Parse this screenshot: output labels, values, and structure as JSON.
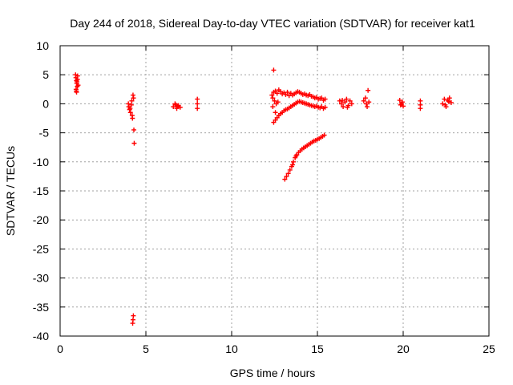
{
  "chart_data": {
    "type": "scatter",
    "title": "Day 244 of 2018, Sidereal Day-to-day VTEC variation (SDTVAR) for receiver kat1",
    "xlabel": "GPS time / hours",
    "ylabel": "SDTVAR / TECUs",
    "xlim": [
      0,
      25
    ],
    "ylim": [
      -40,
      10
    ],
    "xticks": [
      0,
      5,
      10,
      15,
      20,
      25
    ],
    "yticks": [
      10,
      5,
      0,
      -5,
      -10,
      -15,
      -20,
      -25,
      -30,
      -35,
      -40
    ],
    "grid": true,
    "marker": "+",
    "series": [
      {
        "name": "kat1",
        "color": "#ff0000",
        "points": [
          [
            0.9,
            5.0
          ],
          [
            0.92,
            4.5
          ],
          [
            0.95,
            4.0
          ],
          [
            0.97,
            3.5
          ],
          [
            1.0,
            3.0
          ],
          [
            0.93,
            2.5
          ],
          [
            0.96,
            2.0
          ],
          [
            1.02,
            4.8
          ],
          [
            0.98,
            3.8
          ],
          [
            1.05,
            3.2
          ],
          [
            0.94,
            2.2
          ],
          [
            1.01,
            4.2
          ],
          [
            4.0,
            -0.5
          ],
          [
            4.05,
            -1.0
          ],
          [
            4.1,
            -1.5
          ],
          [
            4.15,
            -0.2
          ],
          [
            4.2,
            -2.0
          ],
          [
            4.25,
            1.5
          ],
          [
            4.28,
            1.0
          ],
          [
            4.18,
            0.5
          ],
          [
            4.22,
            -2.5
          ],
          [
            4.3,
            -4.5
          ],
          [
            4.32,
            -6.8
          ],
          [
            4.27,
            -36.5
          ],
          [
            4.25,
            -37.2
          ],
          [
            4.23,
            -37.8
          ],
          [
            3.98,
            0.0
          ],
          [
            4.08,
            -0.8
          ],
          [
            6.6,
            -0.5
          ],
          [
            6.7,
            0.0
          ],
          [
            6.8,
            -0.8
          ],
          [
            6.9,
            -0.3
          ],
          [
            7.0,
            -0.6
          ],
          [
            6.75,
            -0.2
          ],
          [
            6.85,
            -0.4
          ],
          [
            8.0,
            0.8
          ],
          [
            8.0,
            0.0
          ],
          [
            8.0,
            -0.8
          ],
          [
            12.45,
            5.8
          ],
          [
            12.35,
            1.5
          ],
          [
            12.45,
            2.0
          ],
          [
            12.55,
            2.2
          ],
          [
            12.65,
            1.8
          ],
          [
            12.75,
            2.4
          ],
          [
            12.85,
            2.1
          ],
          [
            12.95,
            1.7
          ],
          [
            13.05,
            1.9
          ],
          [
            13.15,
            1.6
          ],
          [
            13.25,
            2.0
          ],
          [
            13.35,
            1.4
          ],
          [
            13.45,
            1.8
          ],
          [
            13.55,
            1.5
          ],
          [
            13.65,
            1.7
          ],
          [
            13.75,
            1.9
          ],
          [
            13.85,
            2.1
          ],
          [
            13.95,
            2.0
          ],
          [
            14.05,
            1.8
          ],
          [
            14.15,
            1.6
          ],
          [
            14.25,
            1.7
          ],
          [
            14.35,
            1.5
          ],
          [
            14.45,
            1.4
          ],
          [
            14.55,
            1.6
          ],
          [
            14.65,
            1.3
          ],
          [
            14.75,
            1.2
          ],
          [
            14.85,
            1.0
          ],
          [
            14.95,
            1.1
          ],
          [
            15.05,
            0.8
          ],
          [
            15.15,
            0.9
          ],
          [
            15.25,
            1.0
          ],
          [
            15.35,
            0.6
          ],
          [
            15.45,
            0.8
          ],
          [
            12.45,
            -3.2
          ],
          [
            12.55,
            -2.8
          ],
          [
            12.65,
            -2.4
          ],
          [
            12.75,
            -2.0
          ],
          [
            12.85,
            -1.7
          ],
          [
            12.95,
            -1.5
          ],
          [
            13.05,
            -1.2
          ],
          [
            13.15,
            -1.0
          ],
          [
            13.25,
            -0.9
          ],
          [
            13.35,
            -0.7
          ],
          [
            13.45,
            -0.5
          ],
          [
            13.55,
            -0.3
          ],
          [
            13.65,
            -0.1
          ],
          [
            13.75,
            0.1
          ],
          [
            13.85,
            0.3
          ],
          [
            13.95,
            0.4
          ],
          [
            14.05,
            0.3
          ],
          [
            14.15,
            0.2
          ],
          [
            14.25,
            0.1
          ],
          [
            14.35,
            0.0
          ],
          [
            14.45,
            -0.1
          ],
          [
            14.55,
            -0.2
          ],
          [
            14.65,
            -0.3
          ],
          [
            14.75,
            -0.4
          ],
          [
            14.85,
            -0.5
          ],
          [
            14.95,
            -0.4
          ],
          [
            15.05,
            -0.6
          ],
          [
            15.15,
            -0.7
          ],
          [
            15.25,
            -0.5
          ],
          [
            15.35,
            -0.8
          ],
          [
            15.45,
            -0.6
          ],
          [
            12.4,
            -0.5
          ],
          [
            12.5,
            0.5
          ],
          [
            12.6,
            0.0
          ],
          [
            12.4,
            1.0
          ],
          [
            12.7,
            0.3
          ],
          [
            12.55,
            -1.5
          ],
          [
            13.1,
            -13.0
          ],
          [
            13.2,
            -12.5
          ],
          [
            13.3,
            -12.0
          ],
          [
            13.4,
            -11.4
          ],
          [
            13.5,
            -10.8
          ],
          [
            13.6,
            -10.0
          ],
          [
            13.7,
            -9.3
          ],
          [
            13.8,
            -8.8
          ],
          [
            13.9,
            -8.4
          ],
          [
            14.0,
            -8.1
          ],
          [
            14.1,
            -7.8
          ],
          [
            14.2,
            -7.6
          ],
          [
            14.3,
            -7.4
          ],
          [
            14.4,
            -7.2
          ],
          [
            14.5,
            -7.0
          ],
          [
            14.6,
            -6.8
          ],
          [
            14.7,
            -6.6
          ],
          [
            14.8,
            -6.4
          ],
          [
            14.9,
            -6.3
          ],
          [
            15.0,
            -6.1
          ],
          [
            15.1,
            -6.0
          ],
          [
            15.2,
            -5.8
          ],
          [
            15.3,
            -5.6
          ],
          [
            15.4,
            -5.4
          ],
          [
            13.55,
            -10.5
          ],
          [
            13.75,
            -9.0
          ],
          [
            16.3,
            0.5
          ],
          [
            16.4,
            0.0
          ],
          [
            16.5,
            -0.5
          ],
          [
            16.6,
            0.3
          ],
          [
            16.7,
            0.8
          ],
          [
            16.8,
            -0.3
          ],
          [
            16.9,
            0.5
          ],
          [
            17.0,
            0.0
          ],
          [
            16.45,
            0.6
          ],
          [
            16.75,
            -0.6
          ],
          [
            17.7,
            0.5
          ],
          [
            17.8,
            1.0
          ],
          [
            17.9,
            -0.5
          ],
          [
            18.0,
            0.3
          ],
          [
            17.95,
            2.3
          ],
          [
            17.85,
            0.0
          ],
          [
            19.8,
            0.6
          ],
          [
            19.9,
            0.0
          ],
          [
            20.0,
            -0.4
          ],
          [
            19.95,
            0.3
          ],
          [
            19.85,
            -0.2
          ],
          [
            21.0,
            0.5
          ],
          [
            21.0,
            -0.2
          ],
          [
            21.0,
            -0.8
          ],
          [
            22.3,
            0.0
          ],
          [
            22.4,
            0.8
          ],
          [
            22.5,
            -0.5
          ],
          [
            22.6,
            0.6
          ],
          [
            22.7,
            1.0
          ],
          [
            22.8,
            0.2
          ],
          [
            22.45,
            -0.2
          ],
          [
            22.65,
            0.4
          ]
        ]
      }
    ]
  }
}
